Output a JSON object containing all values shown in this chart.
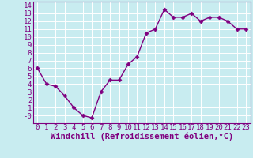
{
  "x": [
    0,
    1,
    2,
    3,
    4,
    5,
    6,
    7,
    8,
    9,
    10,
    11,
    12,
    13,
    14,
    15,
    16,
    17,
    18,
    19,
    20,
    21,
    22,
    23
  ],
  "y": [
    6.0,
    4.0,
    3.7,
    2.5,
    1.0,
    0.0,
    -0.3,
    3.0,
    4.5,
    4.5,
    6.5,
    7.5,
    10.5,
    11.0,
    13.5,
    12.5,
    12.5,
    13.0,
    12.0,
    12.5,
    12.5,
    12.0,
    11.0,
    11.0
  ],
  "line_color": "#800080",
  "marker": "D",
  "marker_size": 2.5,
  "xlabel": "Windchill (Refroidissement éolien,°C)",
  "xlim": [
    -0.5,
    23.5
  ],
  "ylim": [
    -1,
    14.5
  ],
  "yticks": [
    0,
    1,
    2,
    3,
    4,
    5,
    6,
    7,
    8,
    9,
    10,
    11,
    12,
    13,
    14
  ],
  "xticks": [
    0,
    1,
    2,
    3,
    4,
    5,
    6,
    7,
    8,
    9,
    10,
    11,
    12,
    13,
    14,
    15,
    16,
    17,
    18,
    19,
    20,
    21,
    22,
    23
  ],
  "bg_color": "#c8ecf0",
  "grid_color": "#ffffff",
  "tick_color": "#800080",
  "label_color": "#800080",
  "font_size": 6.5,
  "xlabel_fontsize": 7.5,
  "line_width": 1.0
}
